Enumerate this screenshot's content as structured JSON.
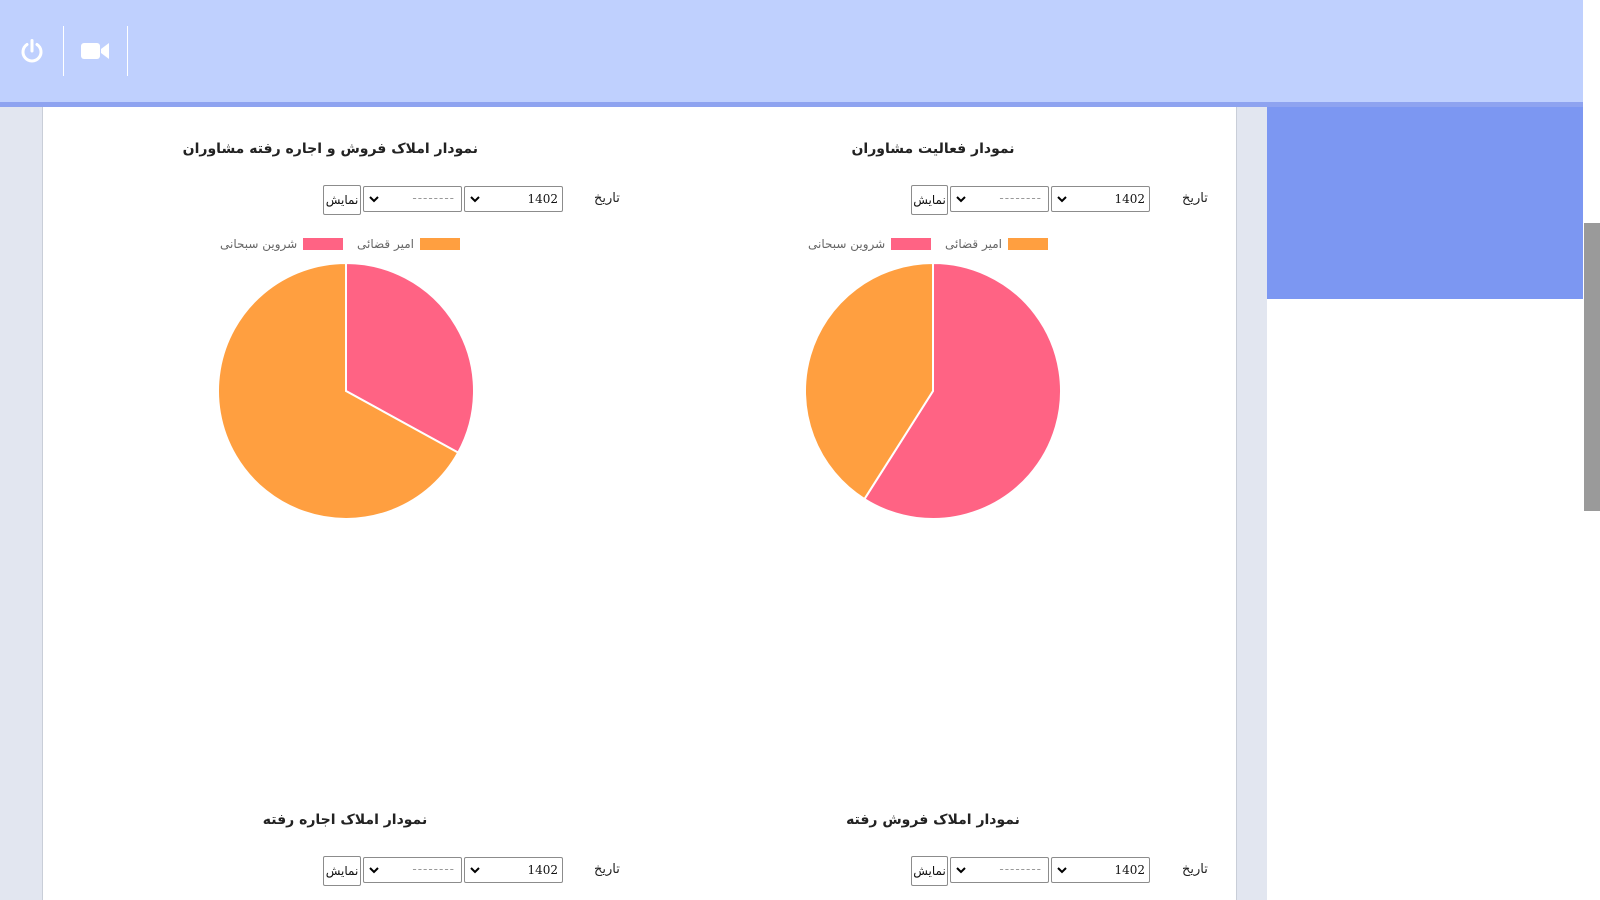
{
  "header": {
    "power_icon": "power-icon",
    "camera_icon": "video-camera-icon"
  },
  "colors": {
    "pink": "#ff6384",
    "orange": "#ff9f40",
    "header_bg": "#bfd0fe",
    "side_accent": "#7c97f2"
  },
  "charts": [
    {
      "id": "activity",
      "title": "نمودار فعالیت مشاوران",
      "date_label": "تاریخ",
      "year_value": "1402",
      "month_value": "--------",
      "show_button": "نمایش",
      "legend": [
        {
          "label": "امیر قضائی",
          "color": "#ff9f40"
        },
        {
          "label": "شروین سبحانی",
          "color": "#ff6384"
        }
      ]
    },
    {
      "id": "sold_rented",
      "title": "نمودار املاک فروش و اجاره رفته مشاوران",
      "date_label": "تاریخ",
      "year_value": "1402",
      "month_value": "--------",
      "show_button": "نمایش",
      "legend": [
        {
          "label": "امیر قضائی",
          "color": "#ff9f40"
        },
        {
          "label": "شروین سبحانی",
          "color": "#ff6384"
        }
      ]
    },
    {
      "id": "sold",
      "title": "نمودار املاک فروش رفته",
      "date_label": "تاریخ",
      "year_value": "1402",
      "month_value": "--------",
      "show_button": "نمایش"
    },
    {
      "id": "rented",
      "title": "نمودار املاک اجاره رفته",
      "date_label": "تاریخ",
      "year_value": "1402",
      "month_value": "--------",
      "show_button": "نمایش"
    }
  ],
  "chart_data": [
    {
      "type": "pie",
      "title": "نمودار فعالیت مشاوران",
      "categories": [
        "شروین سبحانی",
        "امیر قضائی"
      ],
      "values": [
        59,
        41
      ],
      "colors": [
        "#ff6384",
        "#ff9f40"
      ],
      "legend": "top"
    },
    {
      "type": "pie",
      "title": "نمودار املاک فروش و اجاره رفته مشاوران",
      "categories": [
        "شروین سبحانی",
        "امیر قضائی"
      ],
      "values": [
        33,
        67
      ],
      "colors": [
        "#ff6384",
        "#ff9f40"
      ],
      "legend": "top"
    }
  ]
}
